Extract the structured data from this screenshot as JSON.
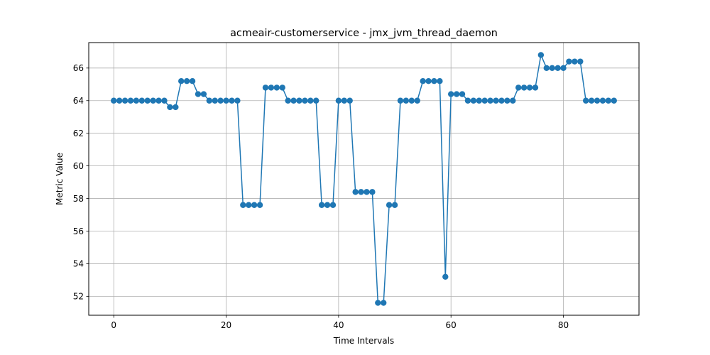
{
  "chart_data": {
    "type": "line",
    "title": "acmeair-customerservice - jmx_jvm_thread_daemon",
    "xlabel": "Time Intervals",
    "ylabel": "Metric Value",
    "xlim": [
      -4.45,
      93.45
    ],
    "ylim": [
      50.84,
      67.56
    ],
    "xticks": [
      0,
      20,
      40,
      60,
      80
    ],
    "yticks": [
      52,
      54,
      56,
      58,
      60,
      62,
      64,
      66
    ],
    "grid": true,
    "marker": "circle",
    "color": "#1f77b4",
    "series": [
      {
        "x": [
          0,
          1,
          2,
          3,
          4,
          5,
          6,
          7,
          8,
          9,
          10,
          11,
          12,
          13,
          14,
          15,
          16,
          17,
          18,
          19,
          20,
          21,
          22,
          23,
          24,
          25,
          26,
          27,
          28,
          29,
          30,
          31,
          32,
          33,
          34,
          35,
          36,
          37,
          38,
          39,
          40,
          41,
          42,
          43,
          44,
          45,
          46,
          47,
          48,
          49,
          50,
          51,
          52,
          53,
          54,
          55,
          56,
          57,
          58,
          59,
          60,
          61,
          62,
          63,
          64,
          65,
          66,
          67,
          68,
          69,
          70,
          71,
          72,
          73,
          74,
          75,
          76,
          77,
          78,
          79,
          80,
          81,
          82,
          83,
          84,
          85,
          86,
          87,
          88,
          89
        ],
        "values": [
          64,
          64,
          64,
          64,
          64,
          64,
          64,
          64,
          64,
          64,
          63.6,
          63.6,
          65.2,
          65.2,
          65.2,
          64.4,
          64.4,
          64,
          64,
          64,
          64,
          64,
          64,
          57.6,
          57.6,
          57.6,
          57.6,
          64.8,
          64.8,
          64.8,
          64.8,
          64,
          64,
          64,
          64,
          64,
          64,
          57.6,
          57.6,
          57.6,
          64,
          64,
          64,
          58.4,
          58.4,
          58.4,
          58.4,
          51.6,
          51.6,
          57.6,
          57.6,
          64,
          64,
          64,
          64,
          65.2,
          65.2,
          65.2,
          65.2,
          53.2,
          64.4,
          64.4,
          64.4,
          64,
          64,
          64,
          64,
          64,
          64,
          64,
          64,
          64,
          64.8,
          64.8,
          64.8,
          64.8,
          66.8,
          66,
          66,
          66,
          66,
          66.4,
          66.4,
          66.4,
          64,
          64,
          64,
          64,
          64,
          64
        ]
      }
    ]
  }
}
